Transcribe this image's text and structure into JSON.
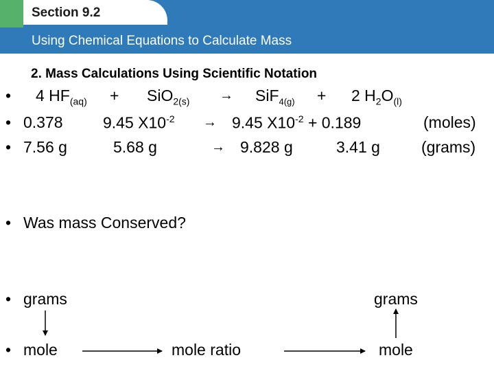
{
  "header": {
    "section": "Section 9.2",
    "title": "Using Chemical Equations to Calculate Mass"
  },
  "subheading": "2. Mass Calculations Using Scientific Notation",
  "bullet": "•",
  "arrow": "→",
  "equation": {
    "coef1": "4 HF",
    "state1": "(aq)",
    "plus1": "+",
    "sio": "SiO",
    "sio_sub": "2(s)",
    "sif": "SiF",
    "sif_sub": "4(g)",
    "plus2": "+",
    "water_a": "2 H",
    "water_sub2": "2",
    "water_b": "O",
    "water_state": "(l)"
  },
  "moles_row": {
    "v1": "0.378",
    "v2_base": "9.45 X10",
    "v2_exp": "-2",
    "v3_base": "9.45 X10",
    "v3_exp": "-2",
    "v3_rest": "+ 0.189",
    "unit": "(moles)"
  },
  "grams_row": {
    "v1": "7.56 g",
    "v2": "5.68 g",
    "v3": "9.828 g",
    "v4": "3.41 g",
    "unit": "(grams)"
  },
  "question": "Was mass Conserved?",
  "flow": {
    "grams_left": "grams",
    "grams_right": "grams",
    "mole_left": "mole",
    "mole_ratio": "mole ratio",
    "mole_right": "mole"
  },
  "colors": {
    "header_blue": "#2f7ab8",
    "header_green": "#55b06a"
  }
}
